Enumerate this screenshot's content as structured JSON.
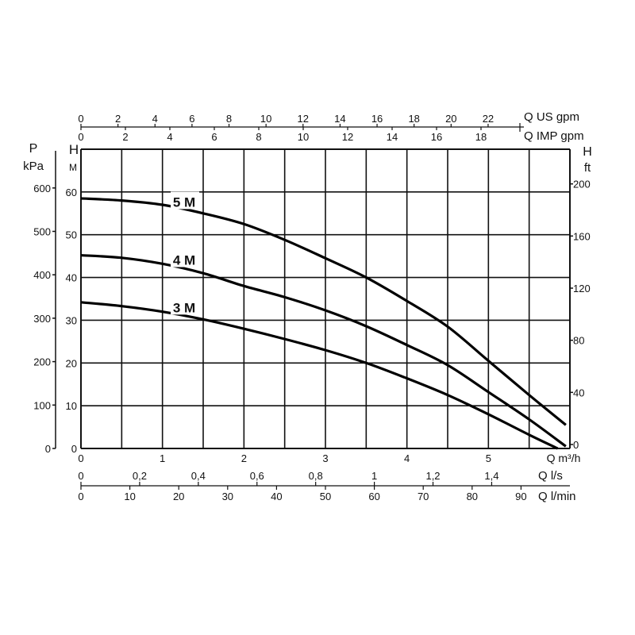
{
  "chart_data": {
    "type": "line",
    "x_unit_label": "Q m³/h",
    "xlim": [
      0,
      6
    ],
    "x_ticks": [
      "0",
      "1",
      "2",
      "3",
      "4",
      "5"
    ],
    "y_left_unit": [
      "H",
      "M"
    ],
    "ylim": [
      0,
      70
    ],
    "y_ticks": [
      "0",
      "10",
      "20",
      "30",
      "40",
      "50",
      "60"
    ],
    "pressure_axis": {
      "label": [
        "P",
        "kPa"
      ],
      "ticks": [
        "0",
        "100",
        "200",
        "300",
        "400",
        "500",
        "600"
      ]
    },
    "right_axis": {
      "label": [
        "H",
        "ft"
      ],
      "ticks": [
        "0",
        "40",
        "80",
        "120",
        "160",
        "200"
      ]
    },
    "top_axes": [
      {
        "label": "Q US gpm",
        "ticks": [
          "0",
          "2",
          "4",
          "6",
          "8",
          "10",
          "12",
          "14",
          "16",
          "18",
          "20",
          "22"
        ]
      },
      {
        "label": "Q IMP gpm",
        "ticks": [
          "0",
          "2",
          "4",
          "6",
          "8",
          "10",
          "12",
          "14",
          "16",
          "18"
        ]
      }
    ],
    "bottom_axes": [
      {
        "label": "Q l/s",
        "ticks": [
          "0",
          "0,2",
          "0,4",
          "0,6",
          "0,8",
          "1",
          "1,2",
          "1,4"
        ]
      },
      {
        "label": "Q l/min",
        "ticks": [
          "0",
          "10",
          "20",
          "30",
          "40",
          "50",
          "60",
          "70",
          "80",
          "90"
        ]
      }
    ],
    "grid": true,
    "series": [
      {
        "name": "5 M",
        "x": [
          0,
          0.5,
          1,
          1.5,
          2,
          2.5,
          3,
          3.5,
          4,
          4.5,
          5,
          5.5,
          5.95
        ],
        "y": [
          58.5,
          58,
          57,
          55,
          52.5,
          48.8,
          44.5,
          40,
          34.5,
          28.5,
          20.5,
          12.5,
          5.5
        ]
      },
      {
        "name": "4 M",
        "x": [
          0,
          0.5,
          1,
          1.5,
          2,
          2.5,
          3,
          3.5,
          4,
          4.5,
          5,
          5.5,
          5.95
        ],
        "y": [
          45.2,
          44.6,
          43.2,
          41,
          38,
          35.4,
          32.3,
          28.6,
          24.2,
          19.5,
          13.2,
          6.8,
          0.5
        ]
      },
      {
        "name": "3 M",
        "x": [
          0,
          0.5,
          1,
          1.5,
          2,
          2.5,
          3,
          3.5,
          4,
          4.5,
          5,
          5.5,
          5.85
        ],
        "y": [
          34.2,
          33.3,
          32,
          30.2,
          28,
          25.6,
          23,
          20,
          16.4,
          12.5,
          8,
          3.2,
          0
        ]
      }
    ]
  }
}
